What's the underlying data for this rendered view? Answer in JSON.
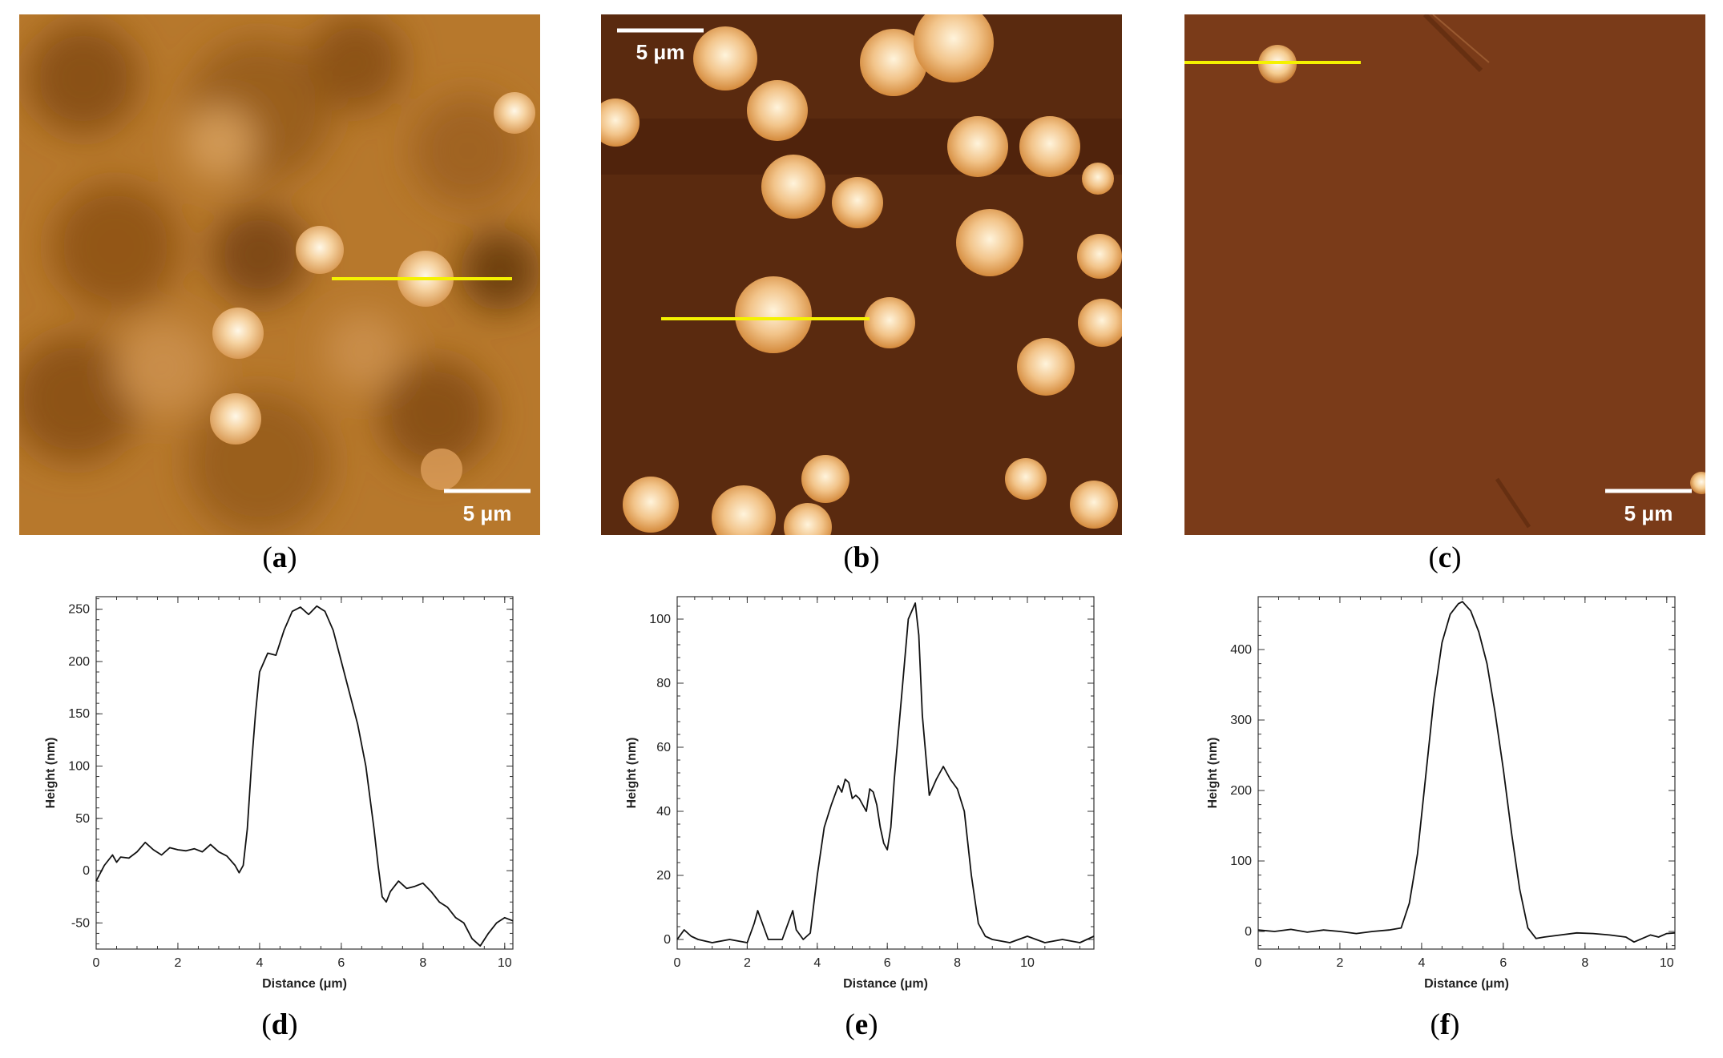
{
  "panels": [
    {
      "label": "a",
      "scale_bar": "5 μm",
      "scale_pos": "bottom-right",
      "bg": "#b7782c",
      "line_color": "#f5f200"
    },
    {
      "label": "b",
      "scale_bar": "5 μm",
      "scale_pos": "top-left",
      "bg": "#5a2a0f",
      "line_color": "#f5f200"
    },
    {
      "label": "c",
      "scale_bar": "5 μm",
      "scale_pos": "bottom-right",
      "bg": "#7a3b19",
      "line_color": "#f5f200"
    }
  ],
  "chart_data": [
    {
      "panel": "d",
      "type": "line",
      "xlabel": "Distance (μm)",
      "ylabel": "Height (nm)",
      "xlim": [
        0,
        10.2
      ],
      "ylim": [
        -75,
        262
      ],
      "xticks": [
        0,
        2,
        4,
        6,
        8,
        10
      ],
      "yticks": [
        -50,
        0,
        50,
        100,
        150,
        200,
        250
      ],
      "x": [
        0,
        0.2,
        0.4,
        0.5,
        0.6,
        0.8,
        1.0,
        1.2,
        1.4,
        1.6,
        1.8,
        2.0,
        2.2,
        2.4,
        2.6,
        2.8,
        3.0,
        3.2,
        3.4,
        3.5,
        3.6,
        3.7,
        3.8,
        3.9,
        4.0,
        4.2,
        4.4,
        4.6,
        4.8,
        5.0,
        5.2,
        5.4,
        5.6,
        5.8,
        6.0,
        6.2,
        6.4,
        6.6,
        6.8,
        6.9,
        7.0,
        7.1,
        7.2,
        7.4,
        7.6,
        7.8,
        8.0,
        8.2,
        8.4,
        8.6,
        8.8,
        9.0,
        9.2,
        9.4,
        9.6,
        9.8,
        10.0,
        10.2
      ],
      "y": [
        -10,
        5,
        15,
        8,
        13,
        12,
        18,
        27,
        20,
        15,
        22,
        20,
        19,
        21,
        18,
        25,
        18,
        14,
        5,
        -2,
        5,
        40,
        100,
        150,
        190,
        208,
        206,
        230,
        248,
        252,
        245,
        253,
        248,
        230,
        200,
        170,
        140,
        100,
        40,
        5,
        -25,
        -30,
        -20,
        -10,
        -17,
        -15,
        -12,
        -20,
        -30,
        -35,
        -45,
        -50,
        -65,
        -72,
        -60,
        -50,
        -45,
        -48
      ]
    },
    {
      "panel": "e",
      "type": "line",
      "xlabel": "Distance (μm)",
      "ylabel": "Height (nm)",
      "xlim": [
        0,
        11.9
      ],
      "ylim": [
        -3,
        107
      ],
      "xticks": [
        0,
        2,
        4,
        6,
        8,
        10
      ],
      "yticks": [
        0,
        20,
        40,
        60,
        80,
        100
      ],
      "x": [
        0,
        0.2,
        0.4,
        0.6,
        1.0,
        1.5,
        2.0,
        2.2,
        2.3,
        2.4,
        2.6,
        3.0,
        3.2,
        3.3,
        3.4,
        3.6,
        3.8,
        4.0,
        4.2,
        4.4,
        4.6,
        4.7,
        4.8,
        4.9,
        5.0,
        5.1,
        5.2,
        5.3,
        5.4,
        5.5,
        5.6,
        5.7,
        5.8,
        5.9,
        6.0,
        6.1,
        6.2,
        6.4,
        6.6,
        6.8,
        6.9,
        7.0,
        7.2,
        7.4,
        7.6,
        7.8,
        8.0,
        8.2,
        8.4,
        8.6,
        8.8,
        9.0,
        9.5,
        10.0,
        10.5,
        11.0,
        11.5,
        11.9
      ],
      "y": [
        0,
        3,
        1,
        0,
        -1,
        0,
        -1,
        5,
        9,
        6,
        0,
        0,
        6,
        9,
        3,
        0,
        2,
        20,
        35,
        42,
        48,
        46,
        50,
        49,
        44,
        45,
        44,
        42,
        40,
        47,
        46,
        42,
        35,
        30,
        28,
        35,
        50,
        75,
        100,
        105,
        95,
        70,
        45,
        50,
        54,
        50,
        47,
        40,
        20,
        5,
        1,
        0,
        -1,
        1,
        -1,
        0,
        -1,
        1
      ]
    },
    {
      "panel": "f",
      "type": "line",
      "xlabel": "Distance (μm)",
      "ylabel": "Height (nm)",
      "xlim": [
        0,
        10.2
      ],
      "ylim": [
        -25,
        475
      ],
      "xticks": [
        0,
        2,
        4,
        6,
        8,
        10
      ],
      "yticks": [
        0,
        100,
        200,
        300,
        400
      ],
      "x": [
        0,
        0.4,
        0.8,
        1.2,
        1.6,
        2.0,
        2.4,
        2.8,
        3.2,
        3.5,
        3.7,
        3.9,
        4.1,
        4.3,
        4.5,
        4.7,
        4.9,
        5.0,
        5.2,
        5.4,
        5.6,
        5.8,
        6.0,
        6.2,
        6.4,
        6.6,
        6.8,
        7.0,
        7.4,
        7.8,
        8.2,
        8.6,
        9.0,
        9.2,
        9.4,
        9.6,
        9.8,
        10.0,
        10.2
      ],
      "y": [
        2,
        0,
        3,
        -1,
        2,
        0,
        -3,
        0,
        2,
        5,
        40,
        110,
        220,
        330,
        410,
        450,
        465,
        468,
        455,
        425,
        380,
        310,
        230,
        140,
        60,
        5,
        -10,
        -8,
        -5,
        -2,
        -3,
        -5,
        -8,
        -15,
        -10,
        -5,
        -8,
        -3,
        -2
      ]
    }
  ]
}
